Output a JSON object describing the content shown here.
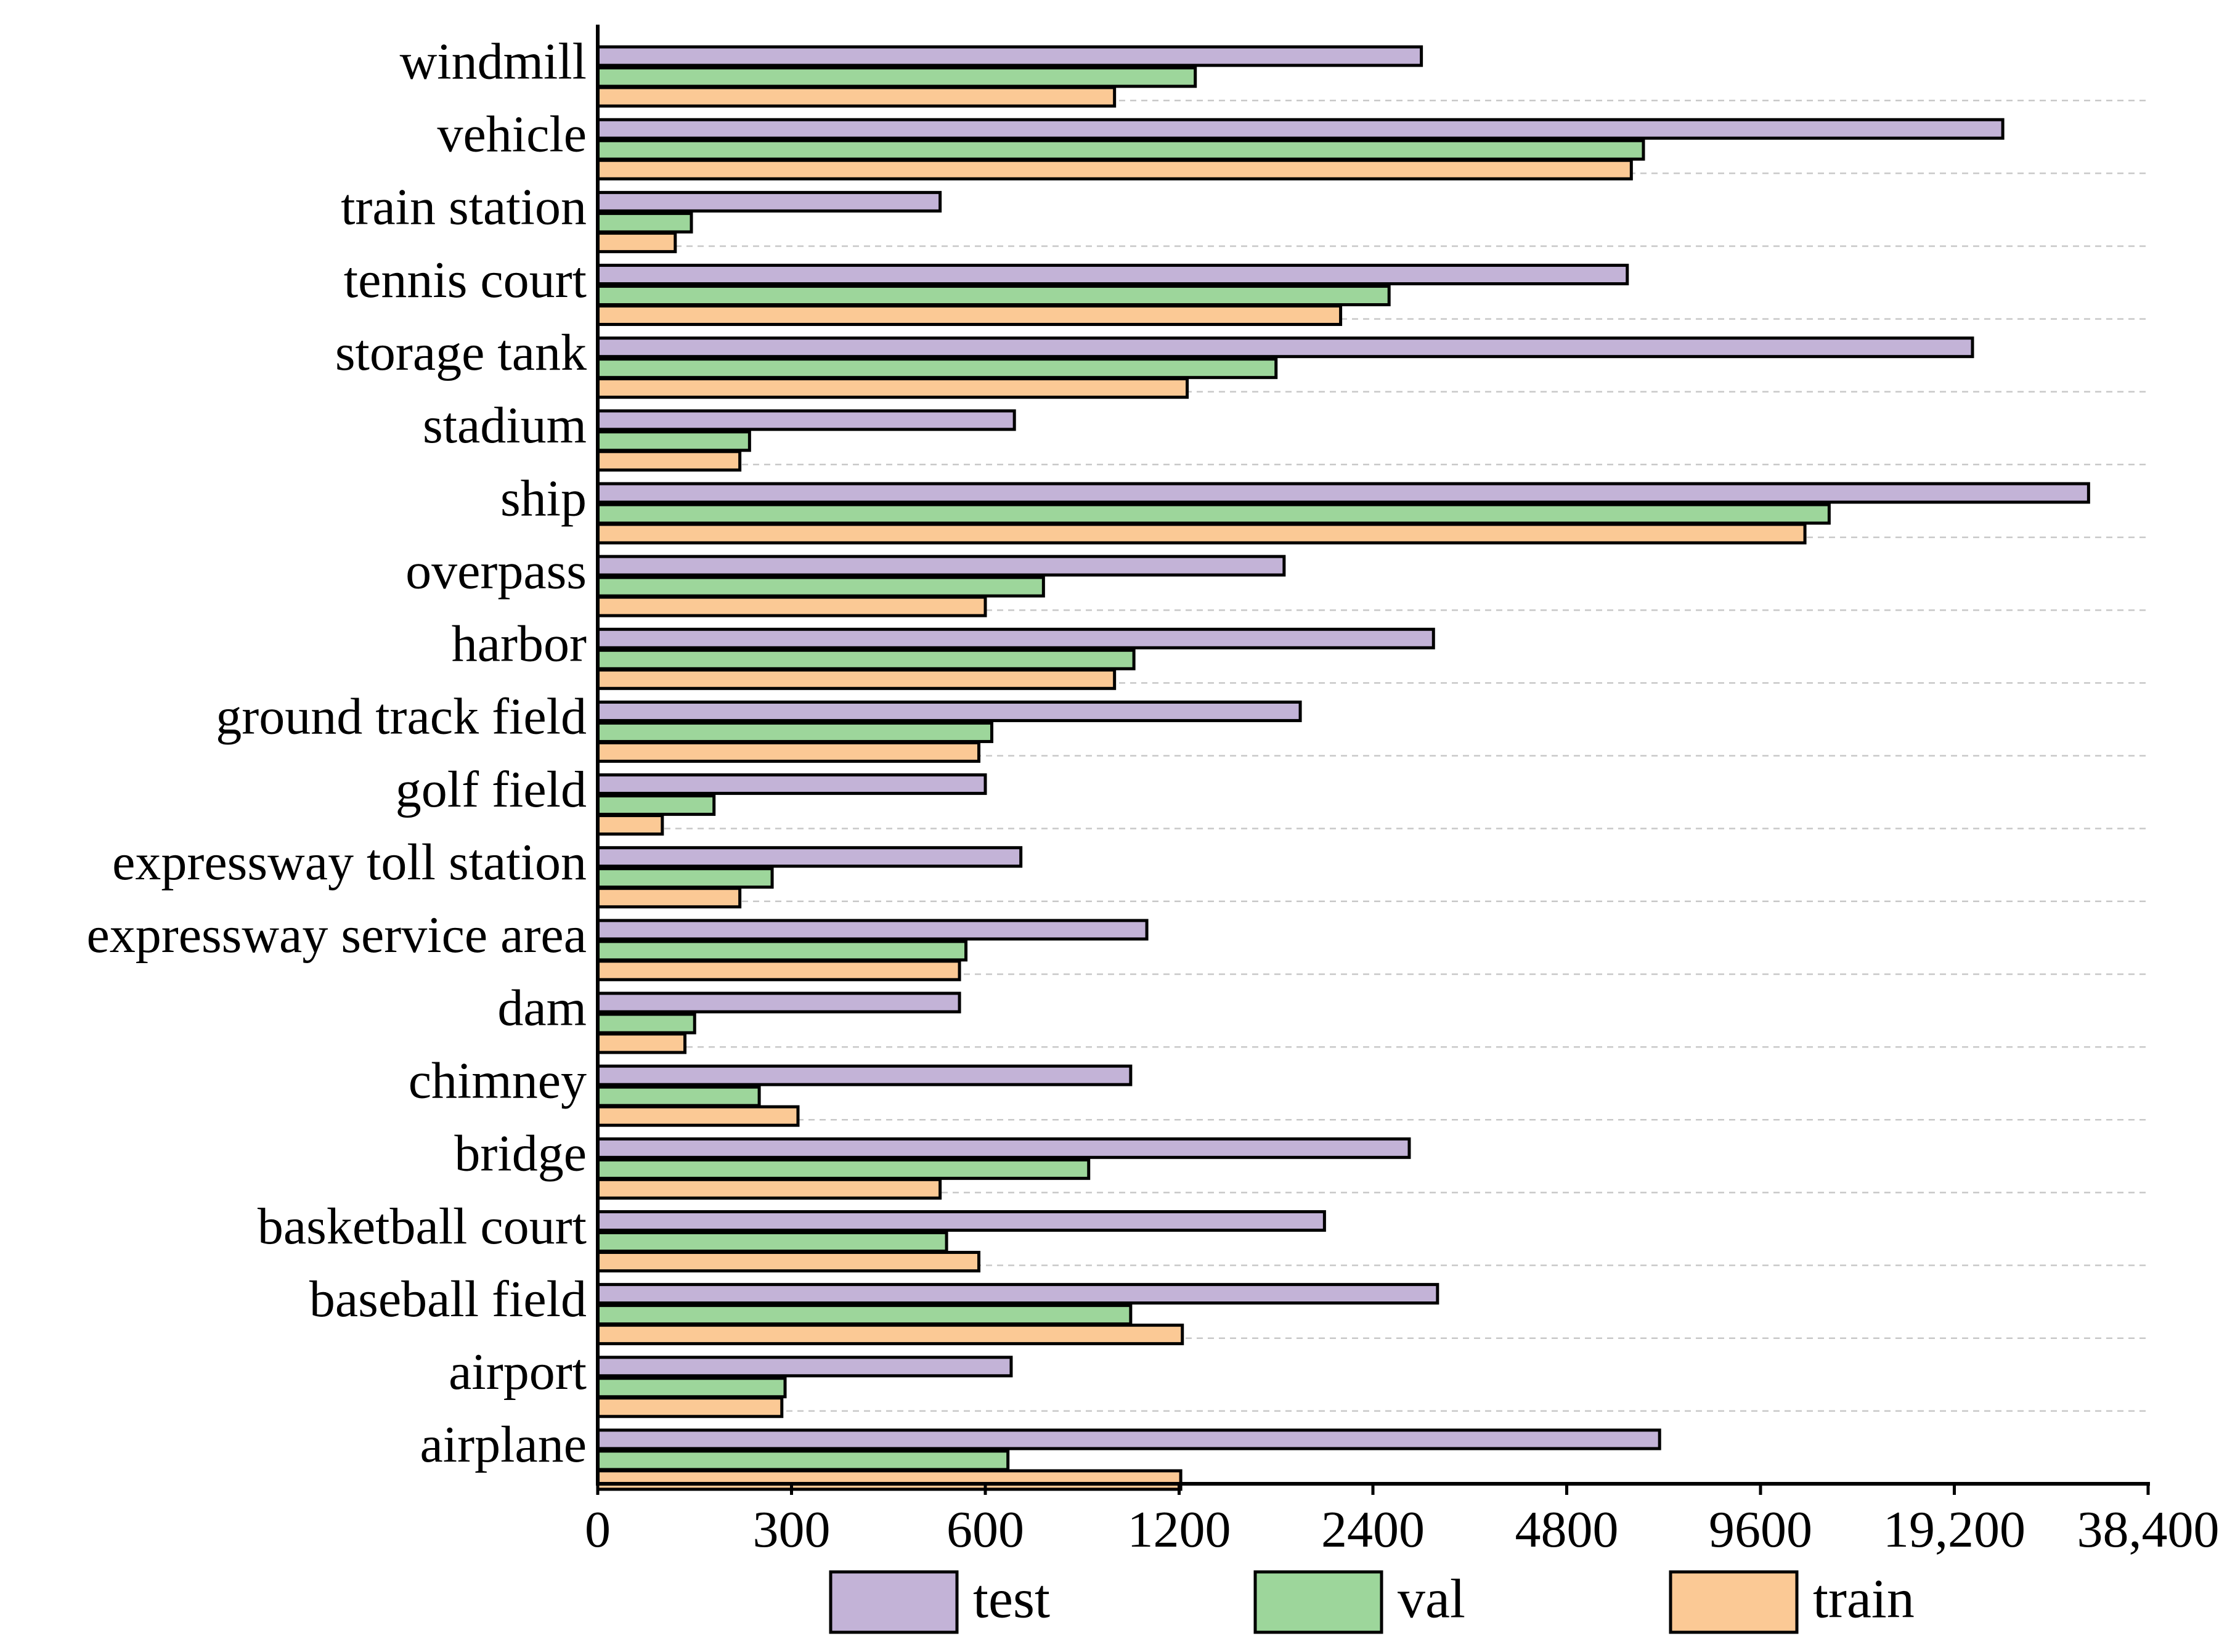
{
  "chart_data": {
    "type": "bar",
    "orientation": "horizontal",
    "title": "",
    "xlabel": "",
    "ylabel": "",
    "x_scale": "piecewise-log",
    "xlim": [
      0,
      38400
    ],
    "x_ticks": [
      0,
      300,
      600,
      1200,
      2400,
      4800,
      9600,
      19200,
      38400
    ],
    "x_tick_labels": [
      "0",
      "300",
      "600",
      "1200",
      "2400",
      "4800",
      "9600",
      "19,200",
      "38,400"
    ],
    "grid": "horizontal dashed between categories",
    "legend_position": "bottom",
    "colors": {
      "test": "#c3b3d7",
      "val": "#9dd69b",
      "train": "#fbc995"
    },
    "categories": [
      "windmill",
      "vehicle",
      "train station",
      "tennis court",
      "storage tank",
      "stadium",
      "ship",
      "overpass",
      "harbor",
      "ground track field",
      "golf field",
      "expressway toll station",
      "expressway service area",
      "dam",
      "chimney",
      "bridge",
      "basketball court",
      "baseball field",
      "airport",
      "airplane"
    ],
    "series": [
      {
        "name": "test",
        "values": [
          3000,
          24000,
          530,
          6300,
          21000,
          690,
          32500,
          1850,
          3150,
          1950,
          600,
          710,
          1100,
          560,
          1050,
          2850,
          2100,
          3200,
          680,
          7100
        ]
      },
      {
        "name": "val",
        "values": [
          1300,
          6700,
          145,
          2600,
          1800,
          235,
          13000,
          780,
          1060,
          620,
          180,
          270,
          570,
          150,
          250,
          920,
          540,
          1050,
          290,
          670
        ]
      },
      {
        "name": "train",
        "values": [
          1000,
          6400,
          120,
          2200,
          1250,
          220,
          11800,
          600,
          1000,
          590,
          100,
          220,
          560,
          135,
          310,
          530,
          590,
          1220,
          285,
          1210
        ]
      }
    ]
  }
}
